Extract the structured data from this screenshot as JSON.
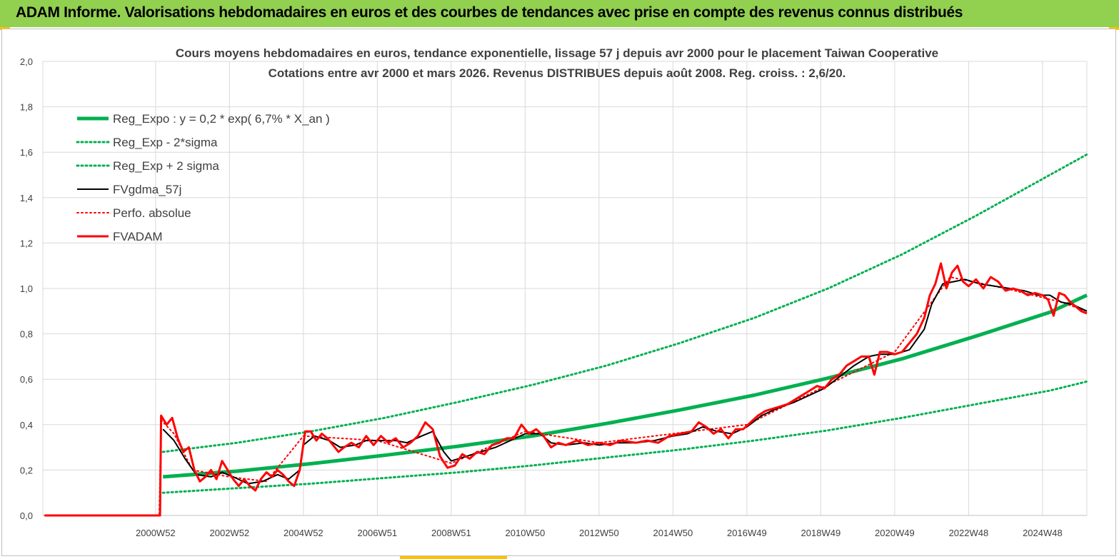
{
  "header": {
    "banner": "ADAM Informe. Valorisations hebdomadaires en euros et des courbes de tendances avec prise en compte des revenus connus distribués"
  },
  "colors": {
    "banner_bg": "#92d050",
    "accent": "#ffc000",
    "trend": "#00b050",
    "band": "#00b050",
    "smooth": "#000000",
    "perf": "#ff0000",
    "fvadam": "#ff0000",
    "grid": "#d9d9d9",
    "text": "#404040"
  },
  "chart_data": {
    "type": "line",
    "title": "Cours moyens hebdomadaires en euros, tendance exponentielle, lissage 57 j depuis avr 2000 pour le placement Taiwan Cooperative",
    "subtitle": "Cotations entre avr 2000 et mars 2026.  Revenus DISTRIBUES depuis août 2008. Reg.  croiss. : 2,6/20.",
    "xlabel": "",
    "ylabel": "",
    "ylim": [
      0,
      2.0
    ],
    "xlim": [
      1997.95,
      2026.2
    ],
    "grid": true,
    "legend_position": "top-left",
    "y_ticks": [
      "0,0",
      "0,2",
      "0,4",
      "0,6",
      "0,8",
      "1,0",
      "1,2",
      "1,4",
      "1,6",
      "1,8",
      "2,0"
    ],
    "x_ticks": [
      {
        "label": "2000W52",
        "x": 2001.0
      },
      {
        "label": "2002W52",
        "x": 2003.0
      },
      {
        "label": "2004W52",
        "x": 2005.0
      },
      {
        "label": "2006W51",
        "x": 2007.0
      },
      {
        "label": "2008W51",
        "x": 2009.0
      },
      {
        "label": "2010W50",
        "x": 2011.0
      },
      {
        "label": "2012W50",
        "x": 2013.0
      },
      {
        "label": "2014W50",
        "x": 2015.0
      },
      {
        "label": "2016W49",
        "x": 2017.0
      },
      {
        "label": "2018W49",
        "x": 2019.0
      },
      {
        "label": "2020W49",
        "x": 2021.0
      },
      {
        "label": "2022W48",
        "x": 2023.0
      },
      {
        "label": "2024W48",
        "x": 2025.0
      }
    ],
    "series": [
      {
        "name": "Reg_Expo : y = 0,2 * exp( 6,7% *  X_an )",
        "style": "solid-thick",
        "color": "#00b050",
        "points": [
          [
            2001.2,
            0.17
          ],
          [
            2003.2,
            0.195
          ],
          [
            2005.2,
            0.228
          ],
          [
            2007.2,
            0.265
          ],
          [
            2009.2,
            0.305
          ],
          [
            2011.2,
            0.35
          ],
          [
            2013.2,
            0.405
          ],
          [
            2015.2,
            0.465
          ],
          [
            2017.2,
            0.53
          ],
          [
            2019.2,
            0.605
          ],
          [
            2021.2,
            0.69
          ],
          [
            2023.2,
            0.79
          ],
          [
            2025.2,
            0.895
          ],
          [
            2026.2,
            0.97
          ]
        ]
      },
      {
        "name": "Reg_Exp - 2*sigma",
        "style": "dotted",
        "color": "#00b050",
        "points": [
          [
            2001.2,
            0.1
          ],
          [
            2003.2,
            0.12
          ],
          [
            2005.2,
            0.14
          ],
          [
            2007.2,
            0.165
          ],
          [
            2009.2,
            0.19
          ],
          [
            2011.2,
            0.22
          ],
          [
            2013.2,
            0.255
          ],
          [
            2015.2,
            0.29
          ],
          [
            2017.2,
            0.33
          ],
          [
            2019.2,
            0.375
          ],
          [
            2021.2,
            0.43
          ],
          [
            2023.2,
            0.49
          ],
          [
            2025.2,
            0.55
          ],
          [
            2026.2,
            0.59
          ]
        ]
      },
      {
        "name": "Reg_Exp + 2 sigma",
        "style": "dotted",
        "color": "#00b050",
        "points": [
          [
            2001.2,
            0.28
          ],
          [
            2003.2,
            0.32
          ],
          [
            2005.2,
            0.37
          ],
          [
            2007.2,
            0.43
          ],
          [
            2009.2,
            0.5
          ],
          [
            2011.2,
            0.575
          ],
          [
            2013.2,
            0.66
          ],
          [
            2015.2,
            0.76
          ],
          [
            2017.2,
            0.87
          ],
          [
            2019.2,
            1.0
          ],
          [
            2021.2,
            1.15
          ],
          [
            2023.2,
            1.32
          ],
          [
            2025.2,
            1.5
          ],
          [
            2026.2,
            1.59
          ]
        ]
      },
      {
        "name": "FVgdma_57j",
        "style": "solid",
        "color": "#000000",
        "points": [
          [
            2001.2,
            0.38
          ],
          [
            2001.5,
            0.33
          ],
          [
            2001.8,
            0.25
          ],
          [
            2002.1,
            0.18
          ],
          [
            2002.5,
            0.17
          ],
          [
            2002.8,
            0.19
          ],
          [
            2003.1,
            0.17
          ],
          [
            2003.5,
            0.14
          ],
          [
            2003.9,
            0.15
          ],
          [
            2004.3,
            0.18
          ],
          [
            2004.6,
            0.16
          ],
          [
            2004.9,
            0.2
          ],
          [
            2005.0,
            0.31
          ],
          [
            2005.3,
            0.35
          ],
          [
            2005.7,
            0.33
          ],
          [
            2006.0,
            0.3
          ],
          [
            2006.4,
            0.31
          ],
          [
            2006.7,
            0.33
          ],
          [
            2007.1,
            0.33
          ],
          [
            2007.5,
            0.33
          ],
          [
            2007.8,
            0.32
          ],
          [
            2008.2,
            0.35
          ],
          [
            2008.5,
            0.37
          ],
          [
            2008.8,
            0.28
          ],
          [
            2009.0,
            0.24
          ],
          [
            2009.4,
            0.26
          ],
          [
            2009.8,
            0.28
          ],
          [
            2010.2,
            0.3
          ],
          [
            2010.6,
            0.33
          ],
          [
            2011.0,
            0.36
          ],
          [
            2011.4,
            0.36
          ],
          [
            2011.7,
            0.32
          ],
          [
            2012.1,
            0.31
          ],
          [
            2012.6,
            0.32
          ],
          [
            2013.0,
            0.31
          ],
          [
            2013.5,
            0.32
          ],
          [
            2014.0,
            0.32
          ],
          [
            2014.5,
            0.33
          ],
          [
            2015.0,
            0.35
          ],
          [
            2015.4,
            0.36
          ],
          [
            2015.8,
            0.39
          ],
          [
            2016.2,
            0.37
          ],
          [
            2016.6,
            0.36
          ],
          [
            2017.0,
            0.39
          ],
          [
            2017.4,
            0.44
          ],
          [
            2017.8,
            0.47
          ],
          [
            2018.3,
            0.5
          ],
          [
            2018.7,
            0.53
          ],
          [
            2019.1,
            0.56
          ],
          [
            2019.5,
            0.61
          ],
          [
            2019.9,
            0.66
          ],
          [
            2020.3,
            0.7
          ],
          [
            2020.6,
            0.71
          ],
          [
            2021.0,
            0.71
          ],
          [
            2021.4,
            0.73
          ],
          [
            2021.8,
            0.82
          ],
          [
            2022.0,
            0.93
          ],
          [
            2022.3,
            1.02
          ],
          [
            2022.6,
            1.03
          ],
          [
            2022.9,
            1.04
          ],
          [
            2023.3,
            1.02
          ],
          [
            2023.7,
            1.01
          ],
          [
            2024.1,
            1.0
          ],
          [
            2024.5,
            0.99
          ],
          [
            2024.9,
            0.97
          ],
          [
            2025.2,
            0.97
          ],
          [
            2025.5,
            0.94
          ],
          [
            2025.8,
            0.93
          ],
          [
            2026.2,
            0.9
          ]
        ]
      },
      {
        "name": "Perfo. absolue",
        "style": "dotted",
        "color": "#ff0000",
        "points": [
          [
            1998.0,
            0.0
          ],
          [
            2001.1,
            0.0
          ],
          [
            2001.15,
            0.42
          ],
          [
            2001.5,
            0.36
          ],
          [
            2002.0,
            0.2
          ],
          [
            2003.0,
            0.17
          ],
          [
            2004.0,
            0.15
          ],
          [
            2005.0,
            0.35
          ],
          [
            2007.0,
            0.33
          ],
          [
            2009.0,
            0.23
          ],
          [
            2011.0,
            0.37
          ],
          [
            2013.0,
            0.32
          ],
          [
            2015.0,
            0.36
          ],
          [
            2017.0,
            0.4
          ],
          [
            2019.0,
            0.56
          ],
          [
            2021.0,
            0.72
          ],
          [
            2022.5,
            1.05
          ],
          [
            2024.0,
            1.0
          ],
          [
            2025.5,
            0.94
          ],
          [
            2026.2,
            0.9
          ]
        ]
      },
      {
        "name": "FVADAM",
        "style": "solid-thick",
        "color": "#ff0000",
        "points": [
          [
            1998.0,
            0.0
          ],
          [
            2001.1,
            0.0
          ],
          [
            2001.12,
            0.0
          ],
          [
            2001.15,
            0.44
          ],
          [
            2001.3,
            0.4
          ],
          [
            2001.45,
            0.43
          ],
          [
            2001.6,
            0.34
          ],
          [
            2001.75,
            0.28
          ],
          [
            2001.9,
            0.3
          ],
          [
            2002.05,
            0.2
          ],
          [
            2002.2,
            0.15
          ],
          [
            2002.35,
            0.17
          ],
          [
            2002.5,
            0.2
          ],
          [
            2002.65,
            0.16
          ],
          [
            2002.8,
            0.24
          ],
          [
            2002.95,
            0.2
          ],
          [
            2003.1,
            0.16
          ],
          [
            2003.25,
            0.13
          ],
          [
            2003.4,
            0.16
          ],
          [
            2003.55,
            0.13
          ],
          [
            2003.7,
            0.11
          ],
          [
            2003.85,
            0.16
          ],
          [
            2004.0,
            0.19
          ],
          [
            2004.15,
            0.17
          ],
          [
            2004.3,
            0.2
          ],
          [
            2004.45,
            0.18
          ],
          [
            2004.6,
            0.15
          ],
          [
            2004.75,
            0.13
          ],
          [
            2004.9,
            0.2
          ],
          [
            2005.05,
            0.37
          ],
          [
            2005.2,
            0.37
          ],
          [
            2005.35,
            0.33
          ],
          [
            2005.5,
            0.36
          ],
          [
            2005.65,
            0.34
          ],
          [
            2005.8,
            0.31
          ],
          [
            2005.95,
            0.28
          ],
          [
            2006.1,
            0.3
          ],
          [
            2006.3,
            0.32
          ],
          [
            2006.5,
            0.3
          ],
          [
            2006.7,
            0.35
          ],
          [
            2006.9,
            0.31
          ],
          [
            2007.1,
            0.35
          ],
          [
            2007.3,
            0.32
          ],
          [
            2007.5,
            0.34
          ],
          [
            2007.7,
            0.3
          ],
          [
            2007.9,
            0.32
          ],
          [
            2008.1,
            0.35
          ],
          [
            2008.3,
            0.41
          ],
          [
            2008.5,
            0.38
          ],
          [
            2008.7,
            0.26
          ],
          [
            2008.9,
            0.21
          ],
          [
            2009.1,
            0.22
          ],
          [
            2009.3,
            0.27
          ],
          [
            2009.5,
            0.25
          ],
          [
            2009.7,
            0.28
          ],
          [
            2009.9,
            0.27
          ],
          [
            2010.1,
            0.31
          ],
          [
            2010.3,
            0.32
          ],
          [
            2010.5,
            0.34
          ],
          [
            2010.7,
            0.34
          ],
          [
            2010.9,
            0.4
          ],
          [
            2011.1,
            0.36
          ],
          [
            2011.3,
            0.38
          ],
          [
            2011.5,
            0.35
          ],
          [
            2011.7,
            0.3
          ],
          [
            2011.9,
            0.32
          ],
          [
            2012.1,
            0.31
          ],
          [
            2012.4,
            0.33
          ],
          [
            2012.7,
            0.31
          ],
          [
            2013.0,
            0.32
          ],
          [
            2013.3,
            0.31
          ],
          [
            2013.6,
            0.33
          ],
          [
            2014.0,
            0.32
          ],
          [
            2014.3,
            0.33
          ],
          [
            2014.6,
            0.32
          ],
          [
            2014.9,
            0.35
          ],
          [
            2015.2,
            0.36
          ],
          [
            2015.5,
            0.37
          ],
          [
            2015.7,
            0.41
          ],
          [
            2015.9,
            0.39
          ],
          [
            2016.1,
            0.36
          ],
          [
            2016.3,
            0.38
          ],
          [
            2016.5,
            0.34
          ],
          [
            2016.7,
            0.38
          ],
          [
            2016.9,
            0.38
          ],
          [
            2017.1,
            0.41
          ],
          [
            2017.3,
            0.44
          ],
          [
            2017.5,
            0.46
          ],
          [
            2017.7,
            0.47
          ],
          [
            2017.9,
            0.48
          ],
          [
            2018.1,
            0.49
          ],
          [
            2018.3,
            0.51
          ],
          [
            2018.5,
            0.53
          ],
          [
            2018.7,
            0.55
          ],
          [
            2018.9,
            0.57
          ],
          [
            2019.1,
            0.56
          ],
          [
            2019.3,
            0.6
          ],
          [
            2019.5,
            0.62
          ],
          [
            2019.7,
            0.66
          ],
          [
            2019.9,
            0.68
          ],
          [
            2020.1,
            0.7
          ],
          [
            2020.3,
            0.7
          ],
          [
            2020.45,
            0.62
          ],
          [
            2020.6,
            0.72
          ],
          [
            2020.8,
            0.72
          ],
          [
            2021.0,
            0.71
          ],
          [
            2021.2,
            0.72
          ],
          [
            2021.4,
            0.76
          ],
          [
            2021.6,
            0.8
          ],
          [
            2021.8,
            0.87
          ],
          [
            2021.95,
            0.97
          ],
          [
            2022.1,
            1.02
          ],
          [
            2022.25,
            1.11
          ],
          [
            2022.4,
            1.0
          ],
          [
            2022.55,
            1.07
          ],
          [
            2022.7,
            1.1
          ],
          [
            2022.85,
            1.03
          ],
          [
            2023.0,
            1.01
          ],
          [
            2023.2,
            1.04
          ],
          [
            2023.4,
            1.0
          ],
          [
            2023.6,
            1.05
          ],
          [
            2023.8,
            1.03
          ],
          [
            2024.0,
            0.99
          ],
          [
            2024.2,
            1.0
          ],
          [
            2024.4,
            0.99
          ],
          [
            2024.6,
            0.97
          ],
          [
            2024.8,
            0.98
          ],
          [
            2025.0,
            0.97
          ],
          [
            2025.15,
            0.95
          ],
          [
            2025.3,
            0.88
          ],
          [
            2025.45,
            0.98
          ],
          [
            2025.6,
            0.97
          ],
          [
            2025.75,
            0.94
          ],
          [
            2025.9,
            0.92
          ],
          [
            2026.05,
            0.9
          ],
          [
            2026.2,
            0.89
          ]
        ]
      }
    ]
  }
}
